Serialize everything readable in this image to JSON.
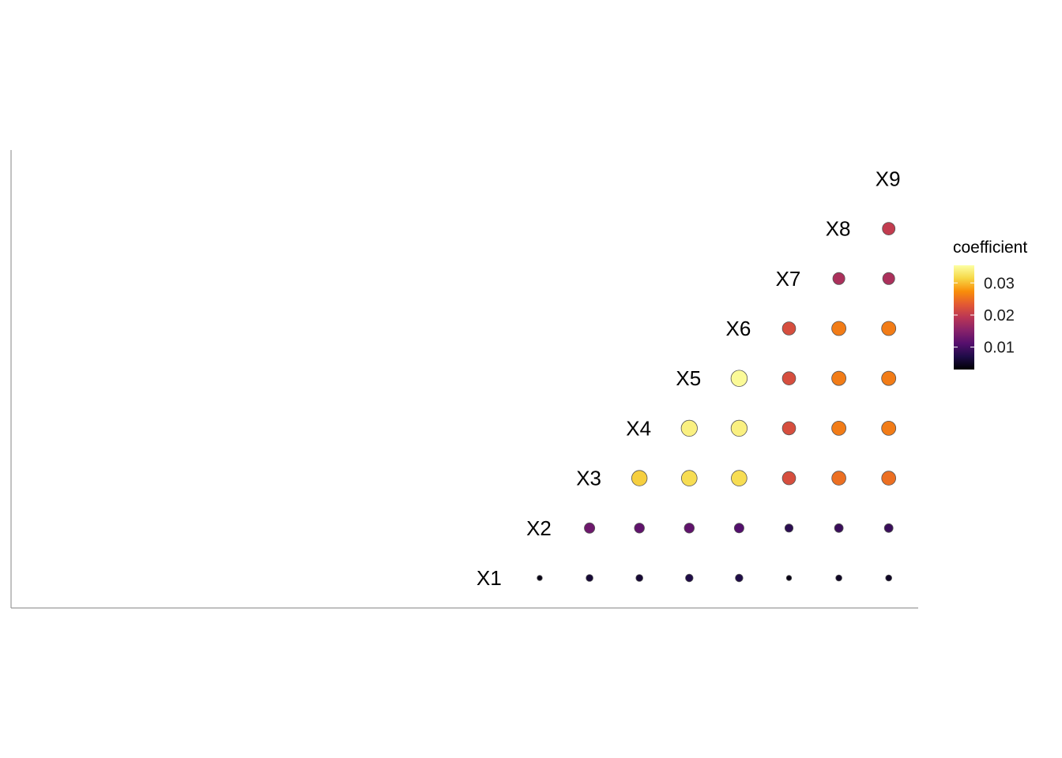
{
  "chart_data": {
    "type": "scatter",
    "variables": [
      "X1",
      "X2",
      "X3",
      "X4",
      "X5",
      "X6",
      "X7",
      "X8",
      "X9"
    ],
    "description_of_matrix": "",
    "legend": {
      "title": "coefficient",
      "ticks": [
        0.01,
        0.02,
        0.03
      ],
      "tick_labels": [
        "0.01",
        "0.02",
        "0.03"
      ],
      "range": [
        0.003,
        0.0355
      ],
      "colormap": "inferno",
      "placement": "right"
    },
    "grid": false,
    "cells": [
      {
        "col": "X1",
        "row": "X1",
        "value": 0.004
      },
      {
        "col": "X2",
        "row": "X1",
        "value": 0.006
      },
      {
        "col": "X3",
        "row": "X1",
        "value": 0.006
      },
      {
        "col": "X4",
        "row": "X1",
        "value": 0.007
      },
      {
        "col": "X5",
        "row": "X1",
        "value": 0.007
      },
      {
        "col": "X6",
        "row": "X1",
        "value": 0.004
      },
      {
        "col": "X7",
        "row": "X1",
        "value": 0.005
      },
      {
        "col": "X8",
        "row": "X1",
        "value": 0.005
      },
      {
        "col": "X2",
        "row": "X2",
        "value": 0.013
      },
      {
        "col": "X3",
        "row": "X2",
        "value": 0.012
      },
      {
        "col": "X4",
        "row": "X2",
        "value": 0.012
      },
      {
        "col": "X5",
        "row": "X2",
        "value": 0.011
      },
      {
        "col": "X6",
        "row": "X2",
        "value": 0.008
      },
      {
        "col": "X7",
        "row": "X2",
        "value": 0.009
      },
      {
        "col": "X8",
        "row": "X2",
        "value": 0.009
      },
      {
        "col": "X3",
        "row": "X3",
        "value": 0.031
      },
      {
        "col": "X4",
        "row": "X3",
        "value": 0.032
      },
      {
        "col": "X5",
        "row": "X3",
        "value": 0.032
      },
      {
        "col": "X6",
        "row": "X3",
        "value": 0.022
      },
      {
        "col": "X7",
        "row": "X3",
        "value": 0.025
      },
      {
        "col": "X8",
        "row": "X3",
        "value": 0.025
      },
      {
        "col": "X4",
        "row": "X4",
        "value": 0.034
      },
      {
        "col": "X5",
        "row": "X4",
        "value": 0.034
      },
      {
        "col": "X6",
        "row": "X4",
        "value": 0.022
      },
      {
        "col": "X7",
        "row": "X4",
        "value": 0.026
      },
      {
        "col": "X8",
        "row": "X4",
        "value": 0.026
      },
      {
        "col": "X5",
        "row": "X5",
        "value": 0.035
      },
      {
        "col": "X6",
        "row": "X5",
        "value": 0.022
      },
      {
        "col": "X7",
        "row": "X5",
        "value": 0.026
      },
      {
        "col": "X8",
        "row": "X5",
        "value": 0.026
      },
      {
        "col": "X6",
        "row": "X6",
        "value": 0.022
      },
      {
        "col": "X7",
        "row": "X6",
        "value": 0.026
      },
      {
        "col": "X8",
        "row": "X6",
        "value": 0.026
      },
      {
        "col": "X7",
        "row": "X7",
        "value": 0.018
      },
      {
        "col": "X8",
        "row": "X7",
        "value": 0.018
      },
      {
        "col": "X8",
        "row": "X8",
        "value": 0.02
      }
    ]
  }
}
